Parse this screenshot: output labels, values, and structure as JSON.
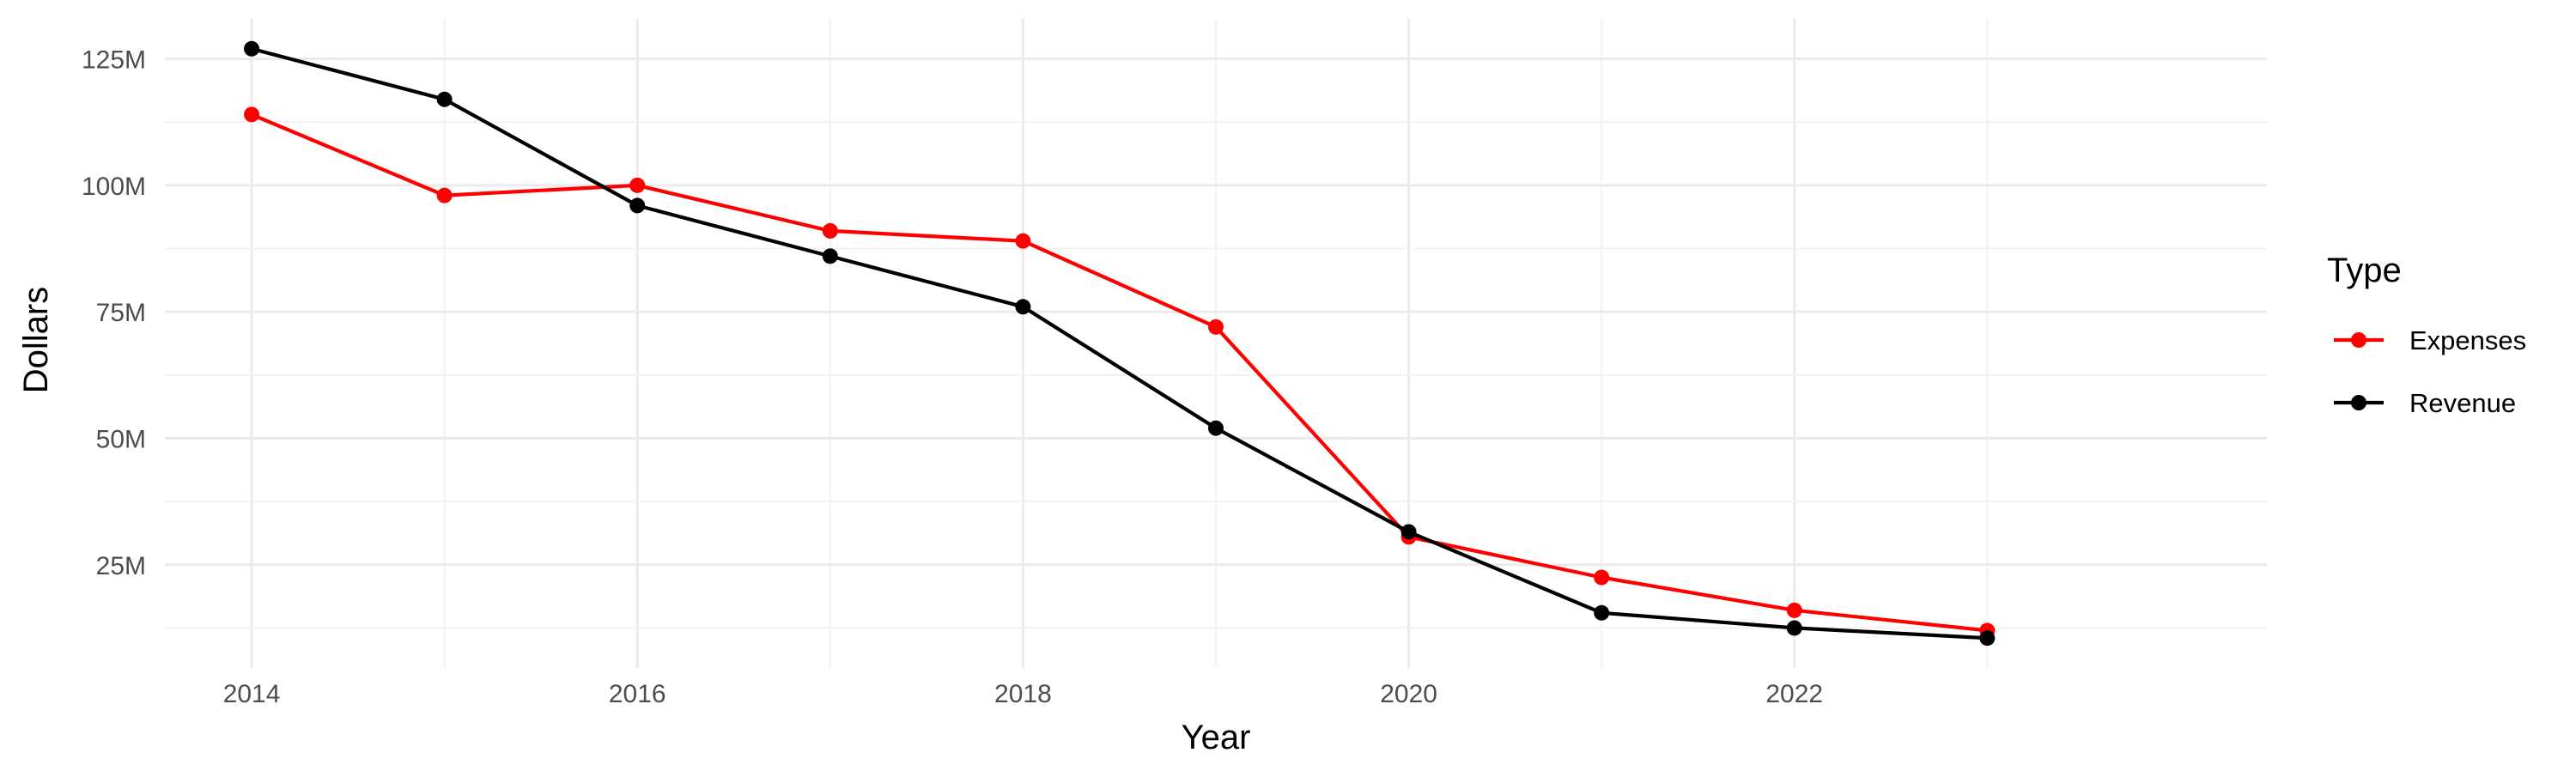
{
  "chart_data": {
    "type": "line",
    "x": [
      2014,
      2015,
      2016,
      2017,
      2018,
      2019,
      2020,
      2021,
      2022,
      2023
    ],
    "series": [
      {
        "name": "Expenses",
        "color": "#ff0000",
        "values": [
          114,
          98,
          100,
          91,
          89,
          72,
          30.5,
          22.5,
          16,
          12
        ]
      },
      {
        "name": "Revenue",
        "color": "#000000",
        "values": [
          127,
          117,
          96,
          86,
          76,
          52,
          31.5,
          15.5,
          12.5,
          10.5
        ]
      }
    ],
    "xlabel": "Year",
    "ylabel": "Dollars",
    "x_ticks": [
      2014,
      2016,
      2018,
      2020,
      2022
    ],
    "y_ticks": [
      25,
      50,
      75,
      100,
      125
    ],
    "y_tick_labels": [
      "25M",
      "50M",
      "75M",
      "100M",
      "125M"
    ],
    "y_unit": "millions of dollars",
    "xlim": [
      2013.55,
      2024.45
    ],
    "ylim": [
      4.6,
      132.9
    ],
    "legend": {
      "title": "Type",
      "position": "right"
    },
    "grid": true
  }
}
